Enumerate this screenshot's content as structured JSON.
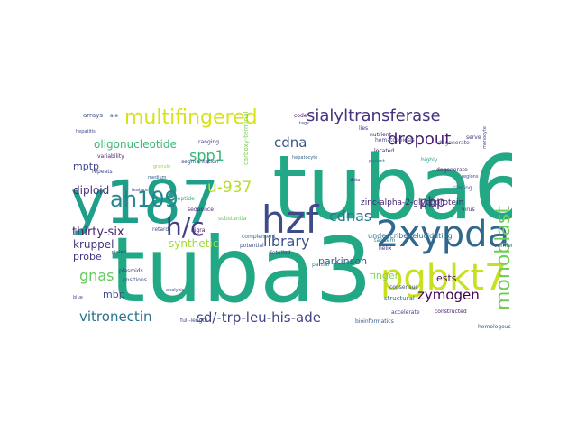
{
  "figure": {
    "type": "word-cloud",
    "words": [
      {
        "text": "tuba6",
        "color": "#22a884"
      },
      {
        "text": "tuba3",
        "color": "#22a884"
      },
      {
        "text": "y187",
        "color": "#1f9e89"
      },
      {
        "text": "hzf",
        "color": "#3e4a89"
      },
      {
        "text": "2xypda",
        "color": "#31688e"
      },
      {
        "text": "pgbkt7",
        "color": "#c8e020"
      },
      {
        "text": "multifingered",
        "color": "#d8e219"
      },
      {
        "text": "sialyltransferase",
        "color": "#46327e"
      },
      {
        "text": "ah109",
        "color": "#25858e"
      },
      {
        "text": "h/c",
        "color": "#433e85"
      },
      {
        "text": "monoblast",
        "color": "#6ece58"
      },
      {
        "text": "dropout",
        "color": "#481f70"
      },
      {
        "text": "spp1",
        "color": "#35b779"
      },
      {
        "text": "cdna",
        "color": "#38598c"
      },
      {
        "text": "pbp",
        "color": "#472d7b"
      },
      {
        "text": "cdnas",
        "color": "#2a788e"
      },
      {
        "text": "library",
        "color": "#3b528b"
      },
      {
        "text": "u-937",
        "color": "#b5de2b"
      },
      {
        "text": "zymogen",
        "color": "#440154"
      },
      {
        "text": "sd/-trp-leu-his-ade",
        "color": "#414487"
      },
      {
        "text": "vitronectin",
        "color": "#2c728e"
      },
      {
        "text": "gnas",
        "color": "#63cb5f"
      },
      {
        "text": "thirty-six",
        "color": "#482173"
      },
      {
        "text": "diploid",
        "color": "#482878"
      },
      {
        "text": "kruppel",
        "color": "#453781"
      },
      {
        "text": "oligonucleotide",
        "color": "#3aba76"
      },
      {
        "text": "mptp",
        "color": "#404688"
      },
      {
        "text": "synthetic",
        "color": "#a2da37"
      },
      {
        "text": "probe",
        "color": "#46337f"
      },
      {
        "text": "mbp",
        "color": "#3c4f8a"
      },
      {
        "text": "ests",
        "color": "#471365"
      },
      {
        "text": "finger",
        "color": "#84d44b"
      },
      {
        "text": "parkinson",
        "color": "#365d8d"
      },
      {
        "text": "zinc-alpha-2-glycoprotein",
        "color": "#482475"
      },
      {
        "text": "undescribedelucidating",
        "color": "#2d708e"
      },
      {
        "text": "carboxy-terminal",
        "color": "#7ad151"
      },
      {
        "text": "hematopoiesis",
        "color": "#3f4889"
      },
      {
        "text": "plasmids",
        "color": "#453882"
      },
      {
        "text": "peptide",
        "color": "#31b57b"
      },
      {
        "text": "positions",
        "color": "#3b518b"
      },
      {
        "text": "sequence",
        "color": "#482979"
      },
      {
        "text": "structural",
        "color": "#2e6f8e"
      },
      {
        "text": "full-length",
        "color": "#3e4989"
      },
      {
        "text": "bioinformatics",
        "color": "#38588c"
      },
      {
        "text": "constructed",
        "color": "#481a6c"
      },
      {
        "text": "accelerate",
        "color": "#414287"
      },
      {
        "text": "homologous",
        "color": "#30698e"
      },
      {
        "text": "degenerate",
        "color": "#3e4c8a"
      },
      {
        "text": "located",
        "color": "#482071"
      },
      {
        "text": "tandem",
        "color": "#2a768e"
      },
      {
        "text": "helix",
        "color": "#46337e"
      },
      {
        "text": "verified",
        "color": "#3b528b"
      },
      {
        "text": "nigra",
        "color": "#471063"
      },
      {
        "text": "complement",
        "color": "#2f6b8e"
      },
      {
        "text": "substantia",
        "color": "#5cc863"
      },
      {
        "text": "potential",
        "color": "#3d4e8a"
      },
      {
        "text": "detailed",
        "color": "#3f4788"
      },
      {
        "text": "partial",
        "color": "#27808e"
      },
      {
        "text": "consensus",
        "color": "#3a548c"
      },
      {
        "text": "nutrient",
        "color": "#482777"
      },
      {
        "text": "hepatocyte",
        "color": "#33638d"
      },
      {
        "text": "ranging",
        "color": "#453581"
      },
      {
        "text": "segmentation",
        "color": "#404387"
      },
      {
        "text": "granule",
        "color": "#8fd744"
      },
      {
        "text": "variability",
        "color": "#482576"
      },
      {
        "text": "repeats",
        "color": "#404588"
      },
      {
        "text": "feature",
        "color": "#3e4989"
      },
      {
        "text": "medium",
        "color": "#35608d"
      },
      {
        "text": "plated",
        "color": "#46307e"
      },
      {
        "text": "arrays",
        "color": "#3b528b"
      },
      {
        "text": "code",
        "color": "#481769"
      },
      {
        "text": "lies",
        "color": "#424086"
      },
      {
        "text": "tags",
        "color": "#3f4788"
      },
      {
        "text": "cloning",
        "color": "#38598c"
      },
      {
        "text": "serve",
        "color": "#46327e"
      },
      {
        "text": "monocyte",
        "color": "#3e4a89"
      },
      {
        "text": "degenerate",
        "color": "#482878"
      },
      {
        "text": "hepatitis",
        "color": "#3b528b"
      },
      {
        "text": "virus",
        "color": "#482677"
      },
      {
        "text": "patient",
        "color": "#2c738e"
      },
      {
        "text": "highly",
        "color": "#1fa187"
      },
      {
        "text": "data",
        "color": "#46337f"
      },
      {
        "text": "regions",
        "color": "#3b528b"
      },
      {
        "text": "analysis",
        "color": "#424186"
      },
      {
        "text": "blue",
        "color": "#3e4989"
      },
      {
        "text": "retard",
        "color": "#3b528b"
      },
      {
        "text": "aie",
        "color": "#3b528b"
      }
    ]
  }
}
